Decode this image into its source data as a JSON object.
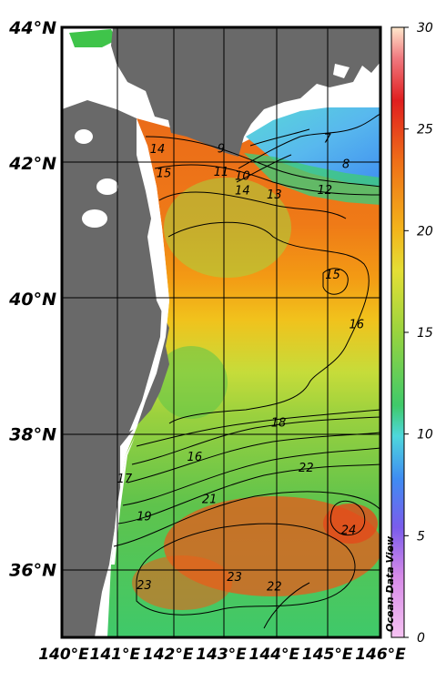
{
  "chart_data": {
    "type": "heatmap",
    "title": "",
    "lon_labels": [
      "140°E",
      "141°E",
      "142°E",
      "143°E",
      "144°E",
      "145°E",
      "146°E"
    ],
    "lat_labels": [
      "44°N",
      "42°N",
      "40°N",
      "38°N",
      "36°N"
    ],
    "lon_range": [
      140,
      146
    ],
    "lat_range": [
      35,
      44
    ],
    "colorbar": {
      "ticks": [
        "0",
        "5",
        "10",
        "15",
        "20",
        "25",
        "30"
      ],
      "range": [
        0,
        30
      ],
      "colors": [
        "#f4b4f0",
        "#c87ae0",
        "#5a5ae6",
        "#3fa0f2",
        "#58d6e0",
        "#3fc96a",
        "#5cc54a",
        "#9ed43d",
        "#dfe238",
        "#f3c21f",
        "#f49a16",
        "#ee6a1a",
        "#e0241d",
        "#f08080",
        "#ffe6cc"
      ]
    },
    "contour_labels": [
      {
        "value": "7",
        "lon": 145.0,
        "lat": 42.35
      },
      {
        "value": "8",
        "lon": 145.35,
        "lat": 41.97
      },
      {
        "value": "9",
        "lon": 143.0,
        "lat": 42.2
      },
      {
        "value": "10",
        "lon": 143.4,
        "lat": 41.8
      },
      {
        "value": "11",
        "lon": 143.0,
        "lat": 41.86
      },
      {
        "value": "12",
        "lon": 144.95,
        "lat": 41.59
      },
      {
        "value": "13",
        "lon": 144.0,
        "lat": 41.52
      },
      {
        "value": "14",
        "lon": 141.8,
        "lat": 42.19
      },
      {
        "value": "14",
        "lon": 143.4,
        "lat": 41.58
      },
      {
        "value": "15",
        "lon": 141.92,
        "lat": 41.84
      },
      {
        "value": "15",
        "lon": 145.1,
        "lat": 40.34
      },
      {
        "value": "16",
        "lon": 145.55,
        "lat": 39.61
      },
      {
        "value": "16",
        "lon": 142.5,
        "lat": 37.65
      },
      {
        "value": "17",
        "lon": 141.18,
        "lat": 37.33
      },
      {
        "value": "18",
        "lon": 144.08,
        "lat": 38.16
      },
      {
        "value": "19",
        "lon": 141.55,
        "lat": 36.77
      },
      {
        "value": "21",
        "lon": 142.78,
        "lat": 37.03
      },
      {
        "value": "22",
        "lon": 144.6,
        "lat": 37.49
      },
      {
        "value": "22",
        "lon": 144.0,
        "lat": 35.74
      },
      {
        "value": "23",
        "lon": 141.55,
        "lat": 35.76
      },
      {
        "value": "23",
        "lon": 143.25,
        "lat": 35.88
      },
      {
        "value": "24",
        "lon": 145.4,
        "lat": 36.57
      }
    ],
    "credit": "Ocean Data View"
  },
  "colors": {
    "land": "#696969",
    "no_data": "#ffffff",
    "grid": "#000000"
  }
}
